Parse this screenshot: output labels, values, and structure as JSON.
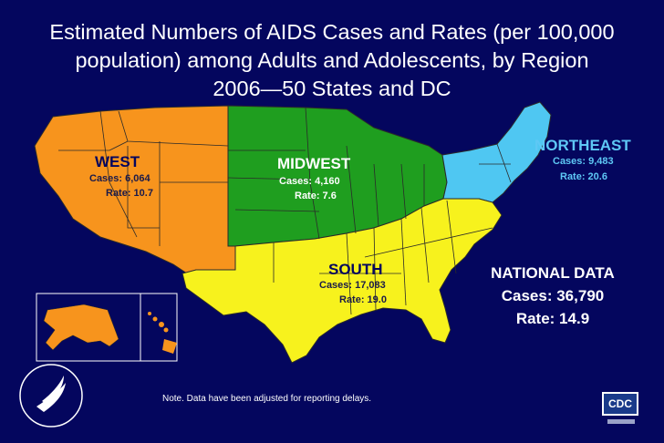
{
  "title": {
    "line1": "Estimated Numbers of AIDS Cases and Rates (per 100,000",
    "line2": "population) among Adults and Adolescents, by Region",
    "line3": "2006—50 States and DC"
  },
  "regions": [
    {
      "name": "WEST",
      "cases_label": "Cases:  6,064",
      "rate_label": "Rate:  10.7",
      "cases": 6064,
      "rate": 10.7,
      "color": "#f7941d"
    },
    {
      "name": "MIDWEST",
      "cases_label": "Cases:  4,160",
      "rate_label": "Rate:  7.6",
      "cases": 4160,
      "rate": 7.6,
      "color": "#1f9e1f"
    },
    {
      "name": "NORTHEAST",
      "cases_label": "Cases:  9,483",
      "rate_label": "Rate:  20.6",
      "cases": 9483,
      "rate": 20.6,
      "color": "#4fc7f2"
    },
    {
      "name": "SOUTH",
      "cases_label": "Cases:  17,083",
      "rate_label": "Rate:  19.0",
      "cases": 17083,
      "rate": 19.0,
      "color": "#f7f21d"
    }
  ],
  "national": {
    "heading": "NATIONAL DATA",
    "cases_label": "Cases:  36,790",
    "rate_label": "Rate:  14.9",
    "cases": 36790,
    "rate": 14.9
  },
  "note": "Note. Data have been adjusted for reporting delays.",
  "logos": {
    "agency_logo": "CDC",
    "seal_icon": "hhs-seal-icon"
  },
  "colors": {
    "background": "#04065e",
    "state_border": "#2a2a2a"
  }
}
